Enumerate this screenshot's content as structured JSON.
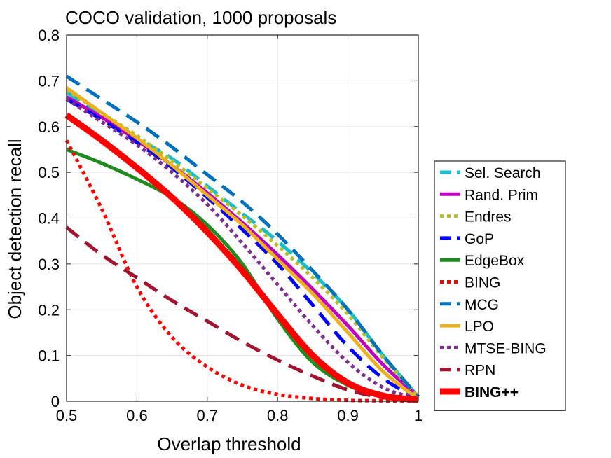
{
  "chart_data": {
    "type": "line",
    "title": "COCO validation, 1000 proposals",
    "xlabel": "Overlap threshold",
    "ylabel": "Object detection recall",
    "xlim": [
      0.5,
      1
    ],
    "ylim": [
      0,
      0.8
    ],
    "x_ticks": [
      0.5,
      0.6,
      0.7,
      0.8,
      0.9,
      1
    ],
    "x_tick_labels": [
      "0.5",
      "0.6",
      "0.7",
      "0.8",
      "0.9",
      "1"
    ],
    "y_ticks": [
      0,
      0.1,
      0.2,
      0.3,
      0.4,
      0.5,
      0.6,
      0.7,
      0.8
    ],
    "y_tick_labels": [
      "0",
      "0.1",
      "0.2",
      "0.3",
      "0.4",
      "0.5",
      "0.6",
      "0.7",
      "0.8"
    ],
    "grid": true,
    "legend_position": "right",
    "x": [
      0.5,
      0.55,
      0.6,
      0.65,
      0.7,
      0.75,
      0.8,
      0.85,
      0.9,
      0.95,
      1.0
    ],
    "series": [
      {
        "name": "Sel. Search",
        "color": "#17becf",
        "style": "dashed",
        "bold": false,
        "values": [
          0.675,
          0.625,
          0.575,
          0.53,
          0.47,
          0.41,
          0.35,
          0.28,
          0.2,
          0.1,
          0.01
        ]
      },
      {
        "name": "Rand. Prim",
        "color": "#bf00bf",
        "style": "solid",
        "bold": false,
        "values": [
          0.665,
          0.62,
          0.57,
          0.515,
          0.455,
          0.39,
          0.32,
          0.245,
          0.165,
          0.08,
          0.01
        ]
      },
      {
        "name": "Endres",
        "color": "#bcbd22",
        "style": "dotted",
        "bold": false,
        "values": [
          0.68,
          0.63,
          0.58,
          0.525,
          0.465,
          0.405,
          0.34,
          0.27,
          0.19,
          0.095,
          0.01
        ]
      },
      {
        "name": "GoP",
        "color": "#0000ff",
        "style": "dashed",
        "bold": false,
        "values": [
          0.66,
          0.615,
          0.565,
          0.51,
          0.445,
          0.375,
          0.3,
          0.21,
          0.12,
          0.05,
          0.005
        ]
      },
      {
        "name": "EdgeBox",
        "color": "#1e8c1e",
        "style": "solid",
        "bold": false,
        "values": [
          0.55,
          0.52,
          0.485,
          0.445,
          0.385,
          0.3,
          0.18,
          0.085,
          0.035,
          0.01,
          0.002
        ]
      },
      {
        "name": "BING",
        "color": "#ff0000",
        "style": "dotted",
        "bold": false,
        "values": [
          0.57,
          0.42,
          0.25,
          0.14,
          0.075,
          0.035,
          0.015,
          0.006,
          0.002,
          0.001,
          0
        ]
      },
      {
        "name": "MCG",
        "color": "#0072bd",
        "style": "dashed",
        "bold": false,
        "values": [
          0.71,
          0.66,
          0.61,
          0.555,
          0.495,
          0.435,
          0.365,
          0.285,
          0.2,
          0.1,
          0.01
        ]
      },
      {
        "name": "LPO",
        "color": "#edb120",
        "style": "solid",
        "bold": false,
        "values": [
          0.685,
          0.63,
          0.575,
          0.515,
          0.45,
          0.385,
          0.31,
          0.235,
          0.15,
          0.065,
          0.005
        ]
      },
      {
        "name": "MTSE-BING",
        "color": "#7e2f8e",
        "style": "dotted",
        "bold": false,
        "values": [
          0.66,
          0.61,
          0.56,
          0.5,
          0.43,
          0.345,
          0.255,
          0.165,
          0.085,
          0.03,
          0.005
        ]
      },
      {
        "name": "RPN",
        "color": "#a2142f",
        "style": "dashed",
        "bold": false,
        "values": [
          0.38,
          0.32,
          0.27,
          0.22,
          0.175,
          0.13,
          0.09,
          0.055,
          0.025,
          0.008,
          0.002
        ]
      },
      {
        "name": "BING++",
        "color": "#ff0000",
        "style": "solid",
        "bold": true,
        "values": [
          0.625,
          0.57,
          0.51,
          0.445,
          0.37,
          0.285,
          0.19,
          0.1,
          0.04,
          0.012,
          0.003
        ]
      }
    ]
  }
}
